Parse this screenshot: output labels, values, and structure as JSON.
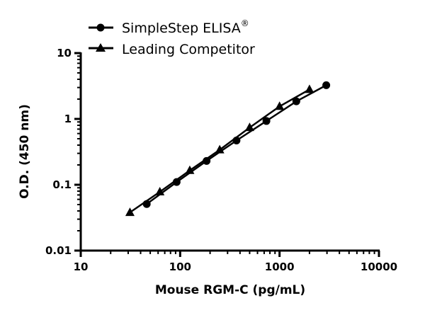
{
  "chart_data": {
    "type": "line",
    "xlabel": "Mouse RGM-C (pg/mL)",
    "ylabel": "O.D. (450 nm)",
    "xscale": "log",
    "yscale": "log",
    "xlim": [
      10,
      10000
    ],
    "ylim": [
      0.01,
      10
    ],
    "x_ticks": [
      "10",
      "100",
      "1000",
      "10000"
    ],
    "y_ticks": [
      "0.01",
      "0.1",
      "1",
      "10"
    ],
    "grid": false,
    "legend_position": "top-left",
    "series": [
      {
        "name": "SimpleStep ELISA",
        "name_superscript": "®",
        "marker": "circle",
        "x": [
          46.1,
          92.2,
          184.4,
          368.8,
          737.5,
          1475,
          2950
        ],
        "y": [
          0.051,
          0.11,
          0.23,
          0.47,
          0.93,
          1.85,
          3.25
        ]
      },
      {
        "name": "Leading Competitor",
        "marker": "triangle",
        "x": [
          31.25,
          62.5,
          125,
          250,
          500,
          1000,
          2000
        ],
        "y": [
          0.038,
          0.078,
          0.165,
          0.34,
          0.74,
          1.55,
          2.8
        ]
      }
    ],
    "colors": {
      "line": "#000000",
      "background": "#ffffff"
    }
  }
}
